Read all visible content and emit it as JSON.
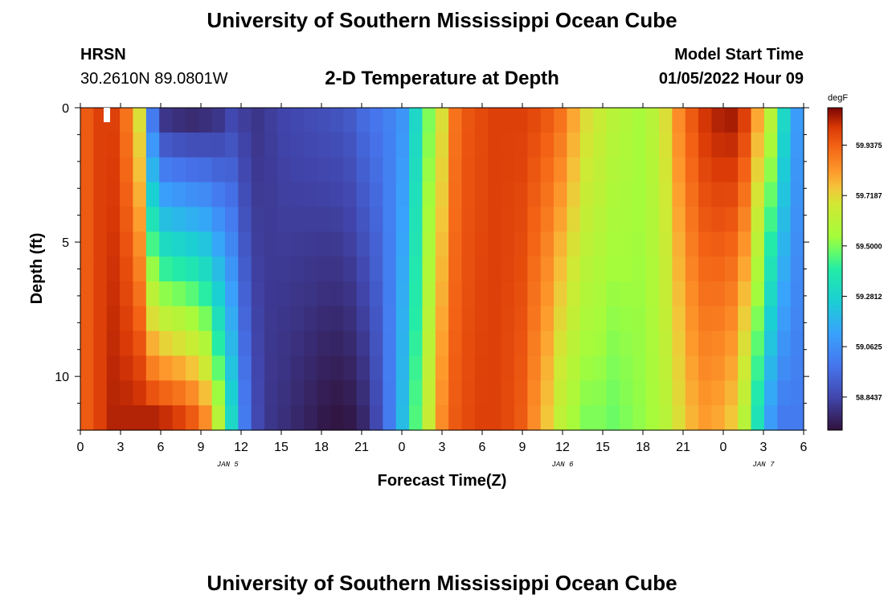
{
  "titles": {
    "main": "University of Southern Mississippi Ocean Cube",
    "repeat": "University of Southern Mississippi Ocean Cube"
  },
  "station": {
    "id": "HRSN",
    "coords": "30.2610N  89.0801W"
  },
  "model": {
    "label": "Model Start Time",
    "time": "01/05/2022 Hour 09"
  },
  "chart_data": {
    "type": "heatmap",
    "title": "2-D Temperature at Depth",
    "xlabel": "Forecast Time(Z)",
    "ylabel": "Depth (ft)",
    "x_ticks": [
      "0",
      "3",
      "6",
      "9",
      "12",
      "15",
      "18",
      "21",
      "0",
      "3",
      "6",
      "9",
      "12",
      "15",
      "18",
      "21",
      "0",
      "3",
      "6"
    ],
    "x_range_hours": [
      0,
      54
    ],
    "date_labels": [
      {
        "label": "JAN 5",
        "hour": 11
      },
      {
        "label": "JAN 6",
        "hour": 36
      },
      {
        "label": "JAN 7",
        "hour": 51
      }
    ],
    "y_ticks": [
      0,
      5,
      10
    ],
    "y_range": [
      0,
      12
    ],
    "colorbar": {
      "unit": "degF",
      "ticks": [
        "59.9375",
        "59.7187",
        "59.5000",
        "59.2812",
        "59.0625",
        "58.8437"
      ],
      "min": 58.7,
      "max": 60.1
    },
    "columns_hours": [
      0,
      1,
      2,
      3,
      4,
      5,
      6,
      7,
      8,
      9,
      10,
      11,
      12,
      13,
      14,
      15,
      16,
      17,
      18,
      19,
      20,
      21,
      22,
      23,
      24,
      25,
      26,
      27,
      28,
      29,
      30,
      31,
      32,
      33,
      34,
      35,
      36,
      37,
      38,
      39,
      40,
      41,
      42,
      43,
      44,
      45,
      46,
      47,
      48,
      49,
      50,
      51,
      52,
      53,
      54
    ],
    "rows_depth_ft": [
      0,
      1,
      2,
      3,
      4,
      5,
      6,
      7,
      8,
      9,
      10,
      11,
      12
    ],
    "approx_values_degF": {
      "surface_0ft": [
        59.95,
        60.0,
        60.0,
        59.9,
        59.7,
        59.0,
        58.8,
        58.78,
        58.77,
        58.78,
        58.8,
        58.85,
        58.82,
        58.8,
        58.82,
        58.84,
        58.85,
        58.86,
        58.87,
        58.88,
        58.9,
        58.95,
        58.98,
        59.02,
        59.08,
        59.3,
        59.5,
        59.7,
        59.9,
        59.96,
        59.98,
        60.0,
        60.0,
        60.0,
        59.98,
        59.95,
        59.9,
        59.8,
        59.7,
        59.65,
        59.6,
        59.58,
        59.55,
        59.6,
        59.7,
        59.85,
        59.95,
        60.02,
        60.05,
        60.06,
        60.0,
        59.8,
        59.6,
        59.3,
        59.1
      ],
      "bottom_12ft": [
        59.95,
        60.0,
        60.05,
        60.05,
        60.05,
        60.05,
        60.03,
        60.0,
        59.95,
        59.85,
        59.6,
        59.3,
        59.0,
        58.85,
        58.8,
        58.78,
        58.76,
        58.74,
        58.72,
        58.71,
        58.72,
        58.76,
        58.85,
        59.0,
        59.2,
        59.45,
        59.65,
        59.85,
        59.95,
        59.98,
        60.0,
        60.0,
        59.98,
        59.95,
        59.85,
        59.75,
        59.62,
        59.55,
        59.5,
        59.5,
        59.48,
        59.5,
        59.52,
        59.55,
        59.6,
        59.7,
        59.78,
        59.82,
        59.8,
        59.75,
        59.6,
        59.35,
        59.1,
        59.0,
        59.0
      ]
    }
  }
}
